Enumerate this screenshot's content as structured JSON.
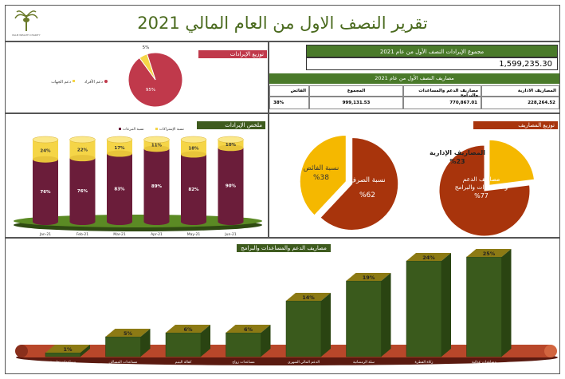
{
  "header": {
    "title": "تقرير النصف الاول من العام المالي 2021",
    "logo_text": "PALM WEALTH CHARITY"
  },
  "revenue_pie_title": "توزيع الإيرادات",
  "summary": {
    "total_revenue_label": "مجموع الإيرادات النصف الأول من عام 2021",
    "total_revenue_value": "1,599,235.30",
    "expenses_title": "مصاريف النصف الأول من عام 2021",
    "headers": [
      "المصاريف الادارية",
      "مصاريف الدعم والمساعدات والبرامج",
      "المجموع",
      "الفائض"
    ],
    "values": [
      "228,264.52",
      "770,867.01",
      "999,131.53",
      "38%"
    ]
  },
  "revenue_summary_title": "ملخص الإيرادات",
  "expense_dist_title": "توزيع المصاريف",
  "support_title": "مصاريف الدعم والمساعدات والبرامج",
  "colors": {
    "green_dark": "#3e5b1e",
    "green_title": "#5a7d2c",
    "red": "#c0392b",
    "maroon": "#6b1d3a",
    "yellow": "#f5d547",
    "orange_pie": "#f5b800",
    "brown_pie": "#a8340c",
    "bar_green": "#3a5a1c",
    "bar_top": "#8a7a12"
  },
  "chart_data": [
    {
      "type": "pie",
      "id": "revenue_distribution",
      "title": "توزيع الإيرادات",
      "labels": [
        "دعم الأفراد",
        "دعم الجهات"
      ],
      "values": [
        95,
        5
      ],
      "value_labels": [
        "95%",
        "5%"
      ],
      "colors": [
        "#c0394b",
        "#f5d547"
      ],
      "legend_position": "left"
    },
    {
      "type": "bar",
      "id": "revenue_summary",
      "title": "ملخص الإيرادات",
      "categories": [
        "Jan-21",
        "Feb-21",
        "Mar-21",
        "Apr-21",
        "May-21",
        "Jun-21"
      ],
      "series": [
        {
          "name": "نسبة التبرعات",
          "values": [
            76,
            76,
            83,
            89,
            82,
            90
          ],
          "labels": [
            "76%",
            "76%",
            "83%",
            "89%",
            "82%",
            "90%"
          ],
          "color": "#6b1d3a"
        },
        {
          "name": "نسبة الإشتراكات",
          "values": [
            24,
            22,
            17,
            11,
            18,
            10
          ],
          "labels": [
            "24%",
            "22%",
            "17%",
            "11%",
            "18%",
            "10%"
          ],
          "color": "#f5d547"
        }
      ],
      "stacked": true
    },
    {
      "type": "pie",
      "id": "spend_ratio",
      "labels": [
        "نسبة الصرف",
        "نسبة الفائض"
      ],
      "values": [
        62,
        38
      ],
      "value_labels": [
        "%62",
        "%38"
      ],
      "colors": [
        "#a8340c",
        "#f5b800"
      ]
    },
    {
      "type": "pie",
      "id": "expense_distribution",
      "title": "توزيع المصاريف",
      "labels": [
        "مصاريف الدعم والمساعدات والبرامج",
        "المصاريف الإدارية"
      ],
      "values": [
        77,
        23
      ],
      "value_labels": [
        "%77",
        "%23"
      ],
      "colors": [
        "#a8340c",
        "#f5b800"
      ]
    },
    {
      "type": "bar",
      "id": "support_expenses",
      "title": "مصاريف الدعم والمساعدات والبرامج",
      "categories": [
        "مساعدات تعليمية",
        "مساعدات المساكن",
        "كفالة اليتيم",
        "مساعدات زواج",
        "الدعم المالي الشهري",
        "سلة الرمضانية",
        "زكاة الفطرة",
        "مساعدات غذائية"
      ],
      "values": [
        1,
        5,
        6,
        6,
        14,
        19,
        24,
        25
      ],
      "value_labels": [
        "1%",
        "5%",
        "6%",
        "6%",
        "14%",
        "19%",
        "24%",
        "25%"
      ],
      "color": "#3a5a1c"
    }
  ]
}
